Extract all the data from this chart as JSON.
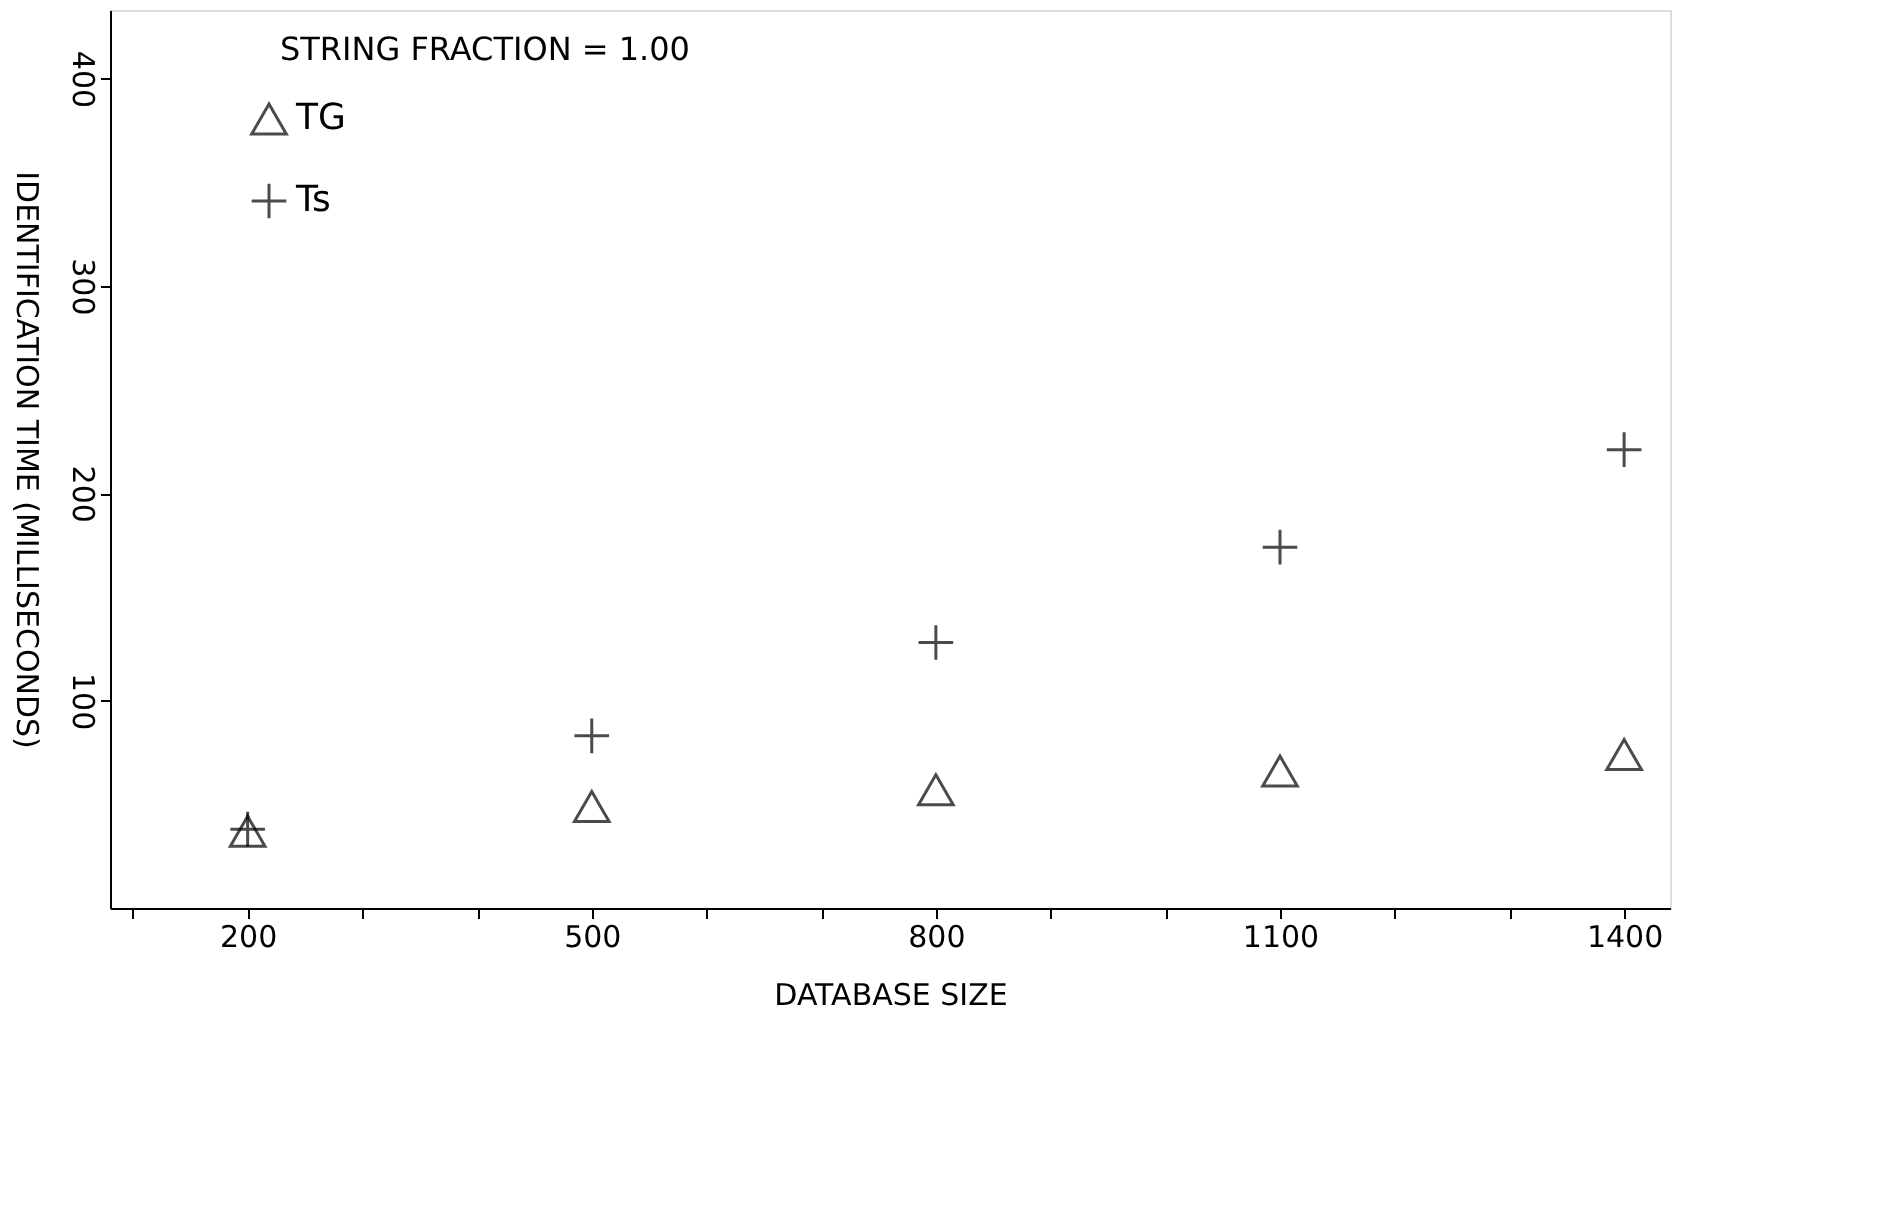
{
  "chart_data": {
    "type": "scatter",
    "xlabel": "DATABASE SIZE",
    "ylabel": "IDENTIFICATION TIME (MILLISECONDS)",
    "x": [
      200,
      500,
      800,
      1100,
      1400
    ],
    "series": [
      {
        "name": "TG",
        "color": "#000000",
        "marker": "triangle",
        "values": [
          37,
          49,
          57,
          66,
          74
        ]
      },
      {
        "name": "Ts",
        "color": "#000000",
        "marker": "cross",
        "values": [
          38,
          83,
          128,
          174,
          221
        ]
      }
    ],
    "xlim": [
      80,
      1440
    ],
    "ylim": [
      0,
      433
    ],
    "xticks": [
      {
        "value": 100,
        "label": null
      },
      200,
      {
        "value": 300,
        "label": null
      },
      {
        "value": 400,
        "label": null
      },
      500,
      {
        "value": 600,
        "label": null
      },
      {
        "value": 700,
        "label": null
      },
      800,
      {
        "value": 900,
        "label": null
      },
      {
        "value": 1000,
        "label": null
      },
      1100,
      {
        "value": 1200,
        "label": null
      },
      {
        "value": 1300,
        "label": null
      },
      1400
    ],
    "yticks": [
      100,
      200,
      300,
      400
    ],
    "annotations": [
      "STRING FRACTION = 1.00"
    ],
    "legend": "top left",
    "grid": false
  }
}
